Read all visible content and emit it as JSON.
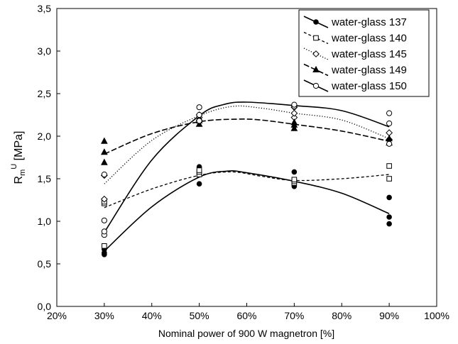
{
  "chart_data": {
    "type": "scatter",
    "xlabel": "Nominal power of 900 W magnetron [%]",
    "ylabel_main": "R",
    "ylabel_sub": "m",
    "ylabel_sup": "U",
    "ylabel_unit": " [MPa]",
    "xlim": [
      20,
      100
    ],
    "ylim": [
      0,
      3.5
    ],
    "x_ticks": [
      "20%",
      "30%",
      "40%",
      "50%",
      "60%",
      "70%",
      "80%",
      "90%",
      "100%"
    ],
    "y_ticks": [
      "0,0",
      "0,5",
      "1,0",
      "1,5",
      "2,0",
      "2,5",
      "3,0",
      "3,5"
    ],
    "grid": false,
    "legend_position": "top-right",
    "series": [
      {
        "name": "water-glass 137",
        "marker": "filled-circle",
        "line": "solid",
        "points": [
          [
            30,
            0.61
          ],
          [
            30,
            0.63
          ],
          [
            30,
            0.67
          ],
          [
            50,
            1.44
          ],
          [
            50,
            1.55
          ],
          [
            50,
            1.64
          ],
          [
            70,
            1.41
          ],
          [
            70,
            1.47
          ],
          [
            70,
            1.58
          ],
          [
            90,
            0.97
          ],
          [
            90,
            1.05
          ],
          [
            90,
            1.28
          ]
        ],
        "curve": [
          [
            30,
            0.65
          ],
          [
            40,
            1.17
          ],
          [
            50,
            1.52
          ],
          [
            56,
            1.59
          ],
          [
            60,
            1.57
          ],
          [
            70,
            1.47
          ],
          [
            80,
            1.33
          ],
          [
            90,
            1.09
          ]
        ]
      },
      {
        "name": "water-glass 140",
        "marker": "open-square",
        "line": "dashed",
        "points": [
          [
            30,
            0.71
          ],
          [
            30,
            1.21
          ],
          [
            30,
            1.23
          ],
          [
            50,
            1.55
          ],
          [
            50,
            1.58
          ],
          [
            50,
            1.6
          ],
          [
            70,
            1.45
          ],
          [
            70,
            1.47
          ],
          [
            70,
            1.49
          ],
          [
            90,
            1.5
          ],
          [
            90,
            1.65
          ]
        ],
        "curve": [
          [
            30,
            1.16
          ],
          [
            40,
            1.38
          ],
          [
            50,
            1.54
          ],
          [
            57,
            1.58
          ],
          [
            63,
            1.53
          ],
          [
            70,
            1.48
          ],
          [
            80,
            1.5
          ],
          [
            90,
            1.55
          ]
        ]
      },
      {
        "name": "water-glass 145",
        "marker": "open-diamond",
        "line": "dotted",
        "points": [
          [
            30,
            1.26
          ],
          [
            30,
            1.54
          ],
          [
            50,
            2.18
          ],
          [
            50,
            2.22
          ],
          [
            50,
            2.25
          ],
          [
            70,
            2.22
          ],
          [
            70,
            2.27
          ],
          [
            70,
            2.34
          ],
          [
            90,
            1.96
          ],
          [
            90,
            2.04
          ]
        ],
        "curve": [
          [
            30,
            1.44
          ],
          [
            40,
            1.95
          ],
          [
            50,
            2.24
          ],
          [
            57,
            2.35
          ],
          [
            63,
            2.33
          ],
          [
            70,
            2.27
          ],
          [
            80,
            2.19
          ],
          [
            90,
            1.97
          ]
        ]
      },
      {
        "name": "water-glass 149",
        "marker": "filled-triangle",
        "line": "long-dashed",
        "points": [
          [
            30,
            1.69
          ],
          [
            30,
            1.81
          ],
          [
            30,
            1.94
          ],
          [
            50,
            2.14
          ],
          [
            50,
            2.18
          ],
          [
            50,
            2.21
          ],
          [
            70,
            2.09
          ],
          [
            70,
            2.13
          ],
          [
            70,
            2.16
          ],
          [
            90,
            1.92
          ],
          [
            90,
            1.97
          ]
        ],
        "curve": [
          [
            30,
            1.79
          ],
          [
            40,
            2.03
          ],
          [
            50,
            2.17
          ],
          [
            58,
            2.2
          ],
          [
            63,
            2.19
          ],
          [
            70,
            2.14
          ],
          [
            80,
            2.06
          ],
          [
            90,
            1.94
          ]
        ]
      },
      {
        "name": "water-glass 150",
        "marker": "open-circle",
        "line": "solid",
        "points": [
          [
            30,
            0.84
          ],
          [
            30,
            0.88
          ],
          [
            30,
            1.01
          ],
          [
            30,
            1.55
          ],
          [
            50,
            2.18
          ],
          [
            50,
            2.25
          ],
          [
            50,
            2.34
          ],
          [
            70,
            2.35
          ],
          [
            70,
            2.37
          ],
          [
            90,
            1.91
          ],
          [
            90,
            2.15
          ],
          [
            90,
            2.27
          ]
        ],
        "curve": [
          [
            30,
            0.87
          ],
          [
            40,
            1.72
          ],
          [
            50,
            2.24
          ],
          [
            55,
            2.37
          ],
          [
            60,
            2.4
          ],
          [
            70,
            2.36
          ],
          [
            80,
            2.3
          ],
          [
            90,
            2.11
          ]
        ]
      }
    ]
  }
}
